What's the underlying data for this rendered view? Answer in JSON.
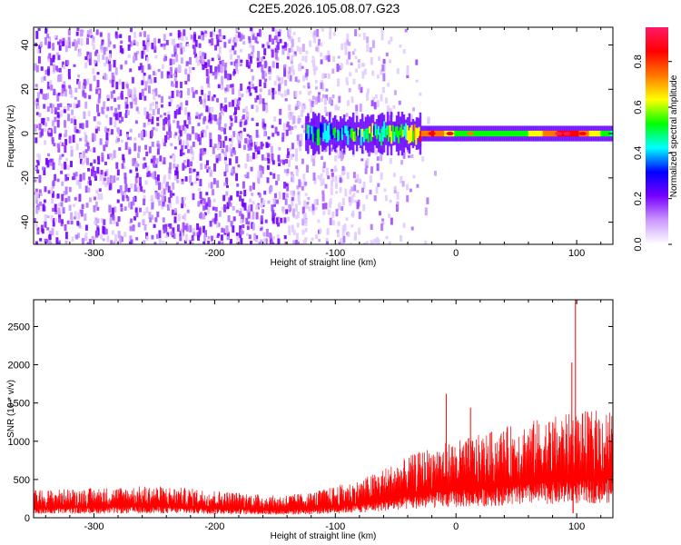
{
  "title": "C2E5.2026.105.08.07.G23",
  "chart_data": [
    {
      "type": "heatmap",
      "name": "spectrogram",
      "xlabel": "Height of straight line (km)",
      "ylabel": "Frequency (Hz)",
      "xlim": [
        -350,
        130
      ],
      "ylim": [
        -50,
        48
      ],
      "xticks": [
        -300,
        -200,
        -100,
        0,
        100
      ],
      "yticks": [
        -40,
        -20,
        0,
        20,
        40
      ],
      "colorbar": {
        "label": "Normalized spectral amplitude",
        "range": [
          0,
          0.95
        ],
        "ticks": [
          0.0,
          0.2,
          0.4,
          0.6,
          0.8
        ],
        "colors": [
          "#ffffff",
          "#cc99ff",
          "#7700ff",
          "#0000ff",
          "#00ffff",
          "#00ff00",
          "#ffff00",
          "#ff7700",
          "#ff0000",
          "#ff1a66"
        ]
      },
      "noise_region": {
        "x_range": [
          -350,
          -125
        ],
        "level": 0.15
      },
      "signal_track": [
        {
          "x": -125,
          "freq": 0,
          "amplitude": 0.4
        },
        {
          "x": -50,
          "freq": 1,
          "amplitude": 0.5
        },
        {
          "x": -20,
          "freq": 0.5,
          "amplitude": 0.8
        },
        {
          "x": 0,
          "freq": 1,
          "amplitude": 0.55
        },
        {
          "x": 50,
          "freq": 0,
          "amplitude": 0.5
        },
        {
          "x": 90,
          "freq": 1,
          "amplitude": 0.85
        },
        {
          "x": 100,
          "freq": 0,
          "amplitude": 0.8
        },
        {
          "x": 130,
          "freq": 0,
          "amplitude": 0.45
        }
      ]
    },
    {
      "type": "line",
      "name": "snr",
      "xlabel": "Height of straight line (km)",
      "ylabel": "SNR (10 * v/v)",
      "xlim": [
        -350,
        130
      ],
      "ylim": [
        0,
        2850
      ],
      "xticks": [
        -300,
        -200,
        -100,
        0,
        100
      ],
      "yticks": [
        0,
        500,
        1000,
        1500,
        2000,
        2500
      ],
      "color": "#ff0000",
      "envelope": [
        {
          "x": -350,
          "y": 250
        },
        {
          "x": -300,
          "y": 270
        },
        {
          "x": -250,
          "y": 290
        },
        {
          "x": -200,
          "y": 250
        },
        {
          "x": -150,
          "y": 200
        },
        {
          "x": -120,
          "y": 230
        },
        {
          "x": -80,
          "y": 340
        },
        {
          "x": -50,
          "y": 500
        },
        {
          "x": -20,
          "y": 650
        },
        {
          "x": 0,
          "y": 700
        },
        {
          "x": 20,
          "y": 750
        },
        {
          "x": 50,
          "y": 850
        },
        {
          "x": 80,
          "y": 920
        },
        {
          "x": 100,
          "y": 950
        },
        {
          "x": 130,
          "y": 1000
        }
      ],
      "spikes": [
        {
          "x": -8,
          "y": 1620
        },
        {
          "x": 12,
          "y": 1440
        },
        {
          "x": 96,
          "y": 2030
        },
        {
          "x": 99,
          "y": 2850
        }
      ],
      "dips": [
        {
          "x": 97,
          "y": 60
        },
        {
          "x": 13,
          "y": 200
        }
      ]
    }
  ]
}
